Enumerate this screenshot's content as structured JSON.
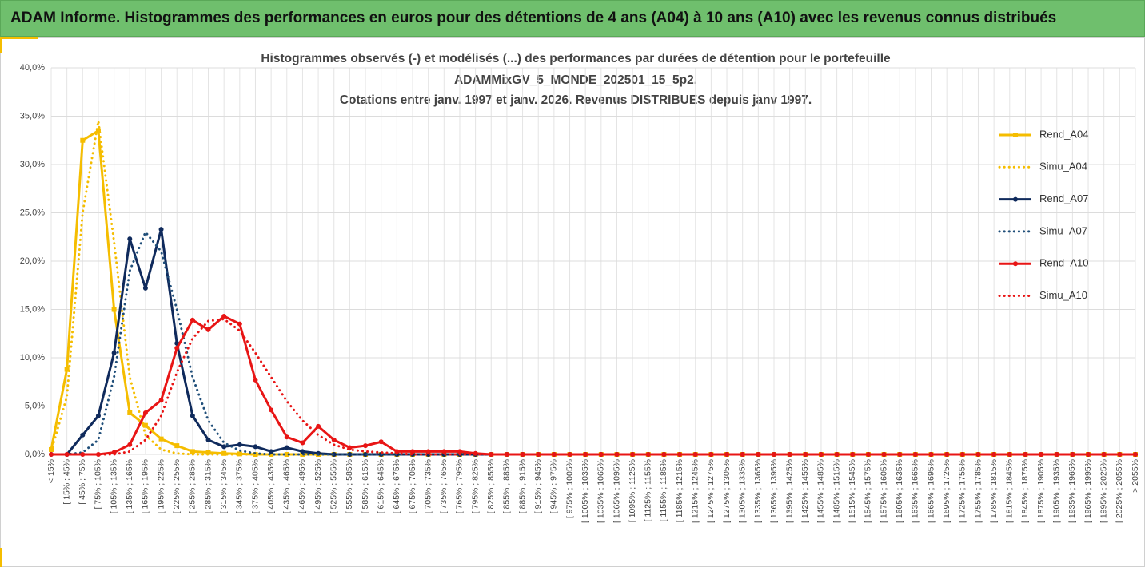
{
  "header": {
    "title": "ADAM Informe. Histogrammes des performances en euros pour des détentions de 4 ans (A04) à 10 ans (A10) avec les revenus connus distribués"
  },
  "chart_data": {
    "type": "line",
    "title": [
      "Histogrammes observés (-) et modélisés (...) des performances par durées de détention pour le portefeuille",
      "ADAMMixGV_5_MONDE_202501_15_5p2.",
      "Cotations entre janv. 1997 et janv. 2026. Revenus DISTRIBUES depuis janv 1997."
    ],
    "categories": [
      "< 15%",
      "[ 15% ; 45%",
      "[ 45% ; 75%",
      "[ 75% ; 105%",
      "[ 105% ; 135%",
      "[ 135% ; 165%",
      "[ 165% ; 195%",
      "[ 195% ; 225%",
      "[ 225% ; 255%",
      "[ 255% ; 285%",
      "[ 285% ; 315%",
      "[ 315% ; 345%",
      "[ 345% ; 375%",
      "[ 375% ; 405%",
      "[ 405% ; 435%",
      "[ 435% ; 465%",
      "[ 465% ; 495%",
      "[ 495% ; 525%",
      "[ 525% ; 555%",
      "[ 555% ; 585%",
      "[ 585% ; 615%",
      "[ 615% ; 645%",
      "[ 645% ; 675%",
      "[ 675% ; 705%",
      "[ 705% ; 735%",
      "[ 735% ; 765%",
      "[ 765% ; 795%",
      "[ 795% ; 825%",
      "[ 825% ; 855%",
      "[ 855% ; 885%",
      "[ 885% ; 915%",
      "[ 915% ; 945%",
      "[ 945% ; 975%",
      "[ 975% ; 1005%",
      "[ 1005% ; 1035%",
      "[ 1035% ; 1065%",
      "[ 1065% ; 1095%",
      "[ 1095% ; 1125%",
      "[ 1125% ; 1155%",
      "[ 1155% ; 1185%",
      "[ 1185% ; 1215%",
      "[ 1215% ; 1245%",
      "[ 1245% ; 1275%",
      "[ 1275% ; 1305%",
      "[ 1305% ; 1335%",
      "[ 1335% ; 1365%",
      "[ 1365% ; 1395%",
      "[ 1395% ; 1425%",
      "[ 1425% ; 1455%",
      "[ 1455% ; 1485%",
      "[ 1485% ; 1515%",
      "[ 1515% ; 1545%",
      "[ 1545% ; 1575%",
      "[ 1575% ; 1605%",
      "[ 1605% ; 1635%",
      "[ 1635% ; 1665%",
      "[ 1665% ; 1695%",
      "[ 1695% ; 1725%",
      "[ 1725% ; 1755%",
      "[ 1755% ; 1785%",
      "[ 1785% ; 1815%",
      "[ 1815% ; 1845%",
      "[ 1845% ; 1875%",
      "[ 1875% ; 1905%",
      "[ 1905% ; 1935%",
      "[ 1935% ; 1965%",
      "[ 1965% ; 1995%",
      "[ 1995% ; 2025%",
      "[ 2025% ; 2055%",
      "> 2055%"
    ],
    "series": [
      {
        "name": "Rend_A04",
        "color": "#f5bd00",
        "style": "solid",
        "marker": "square",
        "values": [
          0.5,
          8.8,
          32.5,
          33.5,
          15.0,
          4.3,
          3.0,
          1.6,
          0.9,
          0.3,
          0.2,
          0.1,
          0.05,
          0,
          0,
          0,
          0,
          0,
          0,
          0,
          0,
          0,
          0,
          0,
          0,
          0,
          0,
          0,
          0,
          0,
          0,
          0,
          0,
          0,
          0,
          0,
          0,
          0,
          0,
          0,
          0,
          0,
          0,
          0,
          0,
          0,
          0,
          0,
          0,
          0,
          0,
          0,
          0,
          0,
          0,
          0,
          0,
          0,
          0,
          0,
          0,
          0,
          0,
          0,
          0,
          0,
          0,
          0,
          0,
          0
        ]
      },
      {
        "name": "Simu_A04",
        "color": "#f5bd00",
        "style": "dotted",
        "marker": "none",
        "values": [
          0.3,
          6,
          25,
          34.5,
          22,
          8,
          2,
          0.5,
          0.1,
          0,
          0,
          0,
          0,
          0,
          0,
          0,
          0,
          0,
          0,
          0,
          0,
          0,
          0,
          0,
          0,
          0,
          0,
          0,
          0,
          0,
          0,
          0,
          0,
          0,
          0,
          0,
          0,
          0,
          0,
          0,
          0,
          0,
          0,
          0,
          0,
          0,
          0,
          0,
          0,
          0,
          0,
          0,
          0,
          0,
          0,
          0,
          0,
          0,
          0,
          0,
          0,
          0,
          0,
          0,
          0,
          0,
          0,
          0,
          0,
          0
        ]
      },
      {
        "name": "Rend_A07",
        "color": "#0f2a5c",
        "style": "solid",
        "marker": "circle",
        "values": [
          0,
          0,
          2.0,
          4.0,
          10.5,
          22.3,
          17.2,
          23.3,
          11.5,
          4.0,
          1.5,
          0.8,
          1.0,
          0.8,
          0.3,
          0.7,
          0.3,
          0.1,
          0,
          0,
          0,
          0,
          0,
          0,
          0,
          0,
          0,
          0,
          0,
          0,
          0,
          0,
          0,
          0,
          0,
          0,
          0,
          0,
          0,
          0,
          0,
          0,
          0,
          0,
          0,
          0,
          0,
          0,
          0,
          0,
          0,
          0,
          0,
          0,
          0,
          0,
          0,
          0,
          0,
          0,
          0,
          0,
          0,
          0,
          0,
          0,
          0,
          0,
          0,
          0
        ]
      },
      {
        "name": "Simu_A07",
        "color": "#1f4e79",
        "style": "dotted",
        "marker": "none",
        "values": [
          0,
          0,
          0.2,
          1.5,
          8,
          19,
          23,
          21,
          15,
          8,
          3.5,
          1.2,
          0.4,
          0.1,
          0,
          0,
          0,
          0,
          0,
          0,
          0,
          0,
          0,
          0,
          0,
          0,
          0,
          0,
          0,
          0,
          0,
          0,
          0,
          0,
          0,
          0,
          0,
          0,
          0,
          0,
          0,
          0,
          0,
          0,
          0,
          0,
          0,
          0,
          0,
          0,
          0,
          0,
          0,
          0,
          0,
          0,
          0,
          0,
          0,
          0,
          0,
          0,
          0,
          0,
          0,
          0,
          0,
          0,
          0,
          0
        ]
      },
      {
        "name": "Rend_A10",
        "color": "#e81515",
        "style": "solid",
        "marker": "circle",
        "values": [
          0,
          0,
          0,
          0,
          0.2,
          1.0,
          4.3,
          5.6,
          11.0,
          13.9,
          12.9,
          14.3,
          13.5,
          7.7,
          4.6,
          1.8,
          1.2,
          2.9,
          1.5,
          0.7,
          0.9,
          1.3,
          0.3,
          0.3,
          0.3,
          0.3,
          0.3,
          0.1,
          0,
          0,
          0,
          0,
          0,
          0,
          0,
          0,
          0,
          0,
          0,
          0,
          0,
          0,
          0,
          0,
          0,
          0,
          0,
          0,
          0,
          0,
          0,
          0,
          0,
          0,
          0,
          0,
          0,
          0,
          0,
          0,
          0,
          0,
          0,
          0,
          0,
          0,
          0,
          0,
          0,
          0
        ]
      },
      {
        "name": "Simu_A10",
        "color": "#e81515",
        "style": "dotted",
        "marker": "none",
        "values": [
          0,
          0,
          0,
          0,
          0,
          0.3,
          1.5,
          4,
          8.5,
          12,
          13.8,
          14,
          12.8,
          10.5,
          8,
          5.5,
          3.5,
          2,
          1,
          0.5,
          0.3,
          0.2,
          0.1,
          0,
          0,
          0,
          0,
          0,
          0,
          0,
          0,
          0,
          0,
          0,
          0,
          0,
          0,
          0,
          0,
          0,
          0,
          0,
          0,
          0,
          0,
          0,
          0,
          0,
          0,
          0,
          0,
          0,
          0,
          0,
          0,
          0,
          0,
          0,
          0,
          0,
          0,
          0,
          0,
          0,
          0,
          0,
          0,
          0,
          0,
          0
        ]
      }
    ],
    "ylim": [
      0,
      40
    ],
    "yticks": [
      {
        "value": 0,
        "label": "0,0%"
      },
      {
        "value": 5,
        "label": "5,0%"
      },
      {
        "value": 10,
        "label": "10,0%"
      },
      {
        "value": 15,
        "label": "15,0%"
      },
      {
        "value": 20,
        "label": "20,0%"
      },
      {
        "value": 25,
        "label": "25,0%"
      },
      {
        "value": 30,
        "label": "30,0%"
      },
      {
        "value": 35,
        "label": "35,0%"
      },
      {
        "value": 40,
        "label": "40,0%"
      }
    ],
    "grid": true,
    "legend": "right"
  }
}
